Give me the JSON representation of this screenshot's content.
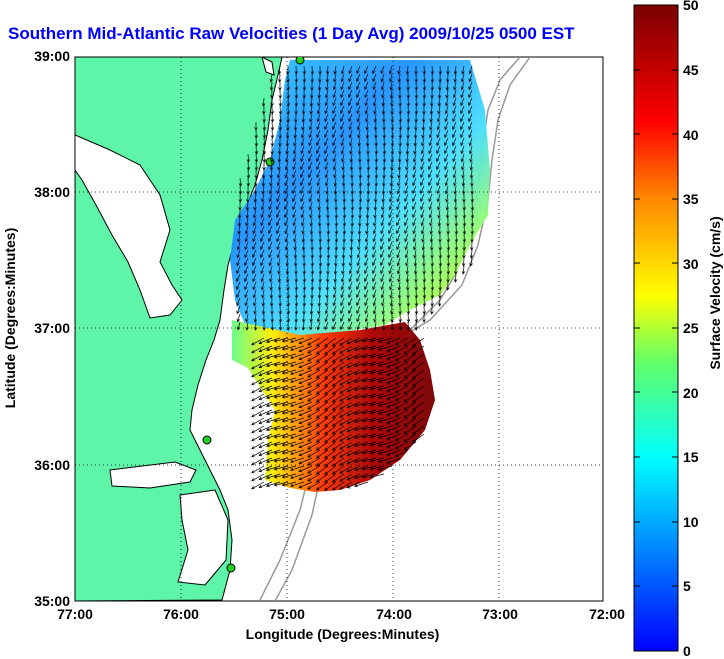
{
  "title": "Southern Mid-Atlantic Raw Velocities (1 Day Avg) 2009/10/25 0500 EST",
  "axes": {
    "xlabel": "Longitude (Degrees:Minutes)",
    "ylabel": "Latitude (Degrees:Minutes)",
    "xticks": [
      "77:00",
      "76:00",
      "75:00",
      "74:00",
      "73:00",
      "72:00"
    ],
    "yticks": [
      "39:00",
      "38:00",
      "37:00",
      "36:00",
      "35:00"
    ]
  },
  "colorbar": {
    "label": "Surface Velocity (cm/s)",
    "ticks": [
      "50",
      "45",
      "40",
      "35",
      "30",
      "25",
      "20",
      "15",
      "10",
      "5",
      "0"
    ],
    "range": [
      0,
      50
    ],
    "colormap": "jet"
  },
  "colors": {
    "title": "#0000ff",
    "land": "#5ef5a8",
    "coastline": "#000000",
    "bathymetry": "#999999",
    "station": "#22cc22"
  }
}
